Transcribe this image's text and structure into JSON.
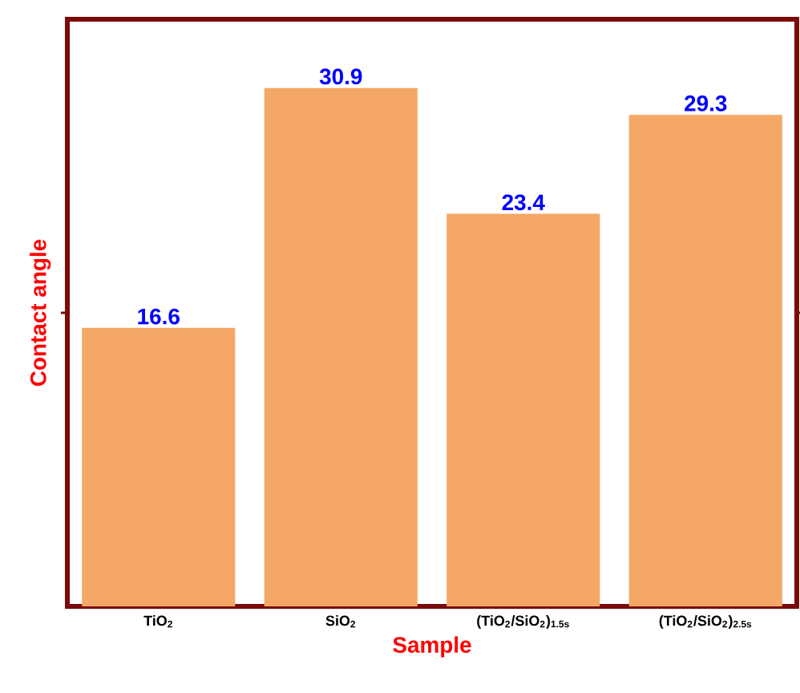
{
  "chart_data": {
    "type": "bar",
    "xlabel": "Sample",
    "ylabel": "Contact angle",
    "categories": [
      "TiO$_{2}$",
      "SiO$_{2}$",
      "(TiO$_{2}$/SiO$_{2}$)$_{1.5s}$",
      "(TiO$_{2}$/SiO$_{2}$)$_{2.5s}$"
    ],
    "values": [
      16.6,
      30.9,
      23.4,
      29.3
    ],
    "color": "#f4a766",
    "ylim": [
      0,
      35
    ],
    "yticks": [
      {
        "value": 17.5,
        "label": null
      }
    ],
    "tick_labels": "x",
    "data_labels": true
  }
}
